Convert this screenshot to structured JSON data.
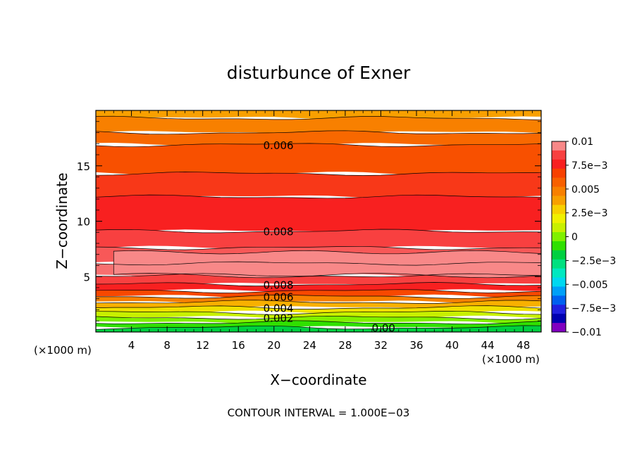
{
  "chart_data": {
    "type": "contour",
    "title": "disturbunce of Exner",
    "xlabel": "X−coordinate",
    "ylabel": "Z−coordinate",
    "x_unit_left": "(×1000 m)",
    "x_unit_right": "(×1000 m)",
    "footer": "CONTOUR INTERVAL = 1.000E−03",
    "xlim": [
      0,
      50
    ],
    "ylim": [
      0,
      20
    ],
    "x_ticks": [
      4,
      8,
      12,
      16,
      20,
      24,
      28,
      32,
      36,
      40,
      44,
      48
    ],
    "y_ticks": [
      5,
      10,
      15
    ],
    "colorbar": {
      "range": [
        -0.01,
        0.01
      ],
      "tick_labels": [
        "0.01",
        "7.5e−3",
        "0.005",
        "2.5e−3",
        "0",
        "−2.5e−3",
        "−0.005",
        "−7.5e−3",
        "−0.01"
      ],
      "colors": [
        "#f88888",
        "#f84040",
        "#f82020",
        "#f84000",
        "#f86000",
        "#f88000",
        "#f8a000",
        "#f8d000",
        "#f0f000",
        "#c8f000",
        "#80f000",
        "#30e000",
        "#00d040",
        "#00e080",
        "#00e8c0",
        "#00d8f0",
        "#00a0f8",
        "#0060f0",
        "#2020e0",
        "#0000b0",
        "#8000c0"
      ]
    },
    "contour_labels": [
      {
        "text": "0.006",
        "x": 20.5,
        "y": 16.9
      },
      {
        "text": "0.008",
        "x": 20.5,
        "y": 9.1
      },
      {
        "text": "0.008",
        "x": 20.5,
        "y": 4.3
      },
      {
        "text": "0.006",
        "x": 20.5,
        "y": 3.2
      },
      {
        "text": "0.004",
        "x": 20.5,
        "y": 2.2
      },
      {
        "text": "0.002",
        "x": 20.5,
        "y": 1.3
      },
      {
        "text": "0.00",
        "x": 32.3,
        "y": 0.4
      }
    ],
    "bands": [
      {
        "z0": 19.3,
        "z1": 20.0,
        "value": 0.004,
        "color": "#f8a000"
      },
      {
        "z0": 18.0,
        "z1": 19.3,
        "value": 0.005,
        "color": "#f88000"
      },
      {
        "z0": 16.9,
        "z1": 18.0,
        "value": 0.0055,
        "color": "#f86800"
      },
      {
        "z0": 14.3,
        "z1": 16.9,
        "value": 0.0065,
        "color": "#f85000"
      },
      {
        "z0": 12.2,
        "z1": 14.3,
        "value": 0.007,
        "color": "#f83818"
      },
      {
        "z0": 9.1,
        "z1": 12.2,
        "value": 0.0075,
        "color": "#f82020"
      },
      {
        "z0": 7.6,
        "z1": 9.1,
        "value": 0.0085,
        "color": "#f84040"
      },
      {
        "z0": 6.2,
        "z1": 7.6,
        "value": 0.009,
        "color": "#f85858"
      },
      {
        "z0": 5.1,
        "z1": 6.2,
        "value": 0.0095,
        "color": "#f87070"
      },
      {
        "z0": 4.3,
        "z1": 5.1,
        "value": 0.008,
        "color": "#f84040"
      },
      {
        "z0": 3.7,
        "z1": 4.3,
        "value": 0.007,
        "color": "#f82020"
      },
      {
        "z0": 3.2,
        "z1": 3.7,
        "value": 0.006,
        "color": "#f84800"
      },
      {
        "z0": 2.7,
        "z1": 3.2,
        "value": 0.005,
        "color": "#f88000"
      },
      {
        "z0": 2.2,
        "z1": 2.7,
        "value": 0.004,
        "color": "#f8b000"
      },
      {
        "z0": 1.75,
        "z1": 2.2,
        "value": 0.003,
        "color": "#f0e000"
      },
      {
        "z0": 1.3,
        "z1": 1.75,
        "value": 0.002,
        "color": "#c8f000"
      },
      {
        "z0": 0.85,
        "z1": 1.3,
        "value": 0.001,
        "color": "#80f000"
      },
      {
        "z0": 0.4,
        "z1": 0.85,
        "value": 0.0005,
        "color": "#30e000"
      },
      {
        "z0": 0.0,
        "z1": 0.4,
        "value": 0.0,
        "color": "#00d040"
      }
    ],
    "blob": {
      "x_range": [
        2,
        50
      ],
      "z_range": [
        5.1,
        7.2
      ],
      "color": "#f88888"
    }
  }
}
